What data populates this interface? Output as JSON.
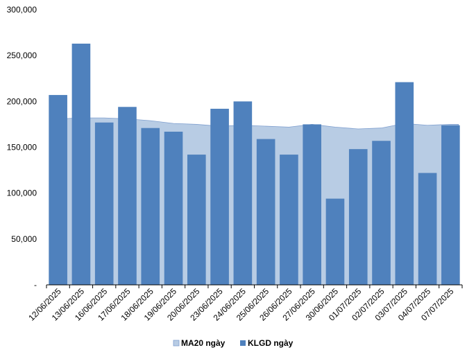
{
  "chart_data": {
    "type": "bar",
    "categories": [
      "12/06/2025",
      "13/06/2025",
      "16/06/2025",
      "17/06/2025",
      "18/06/2025",
      "19/06/2025",
      "20/06/2025",
      "23/06/2025",
      "24/06/2025",
      "25/06/2025",
      "26/06/2025",
      "27/06/2025",
      "30/06/2025",
      "01/07/2025",
      "02/07/2025",
      "03/07/2025",
      "04/07/2025",
      "07/07/2025"
    ],
    "series": [
      {
        "name": "MA20 ngày",
        "kind": "area",
        "color": "#b8cce4",
        "values": [
          181000,
          182000,
          182000,
          181000,
          179000,
          176000,
          175000,
          173000,
          174000,
          173000,
          172000,
          175000,
          172000,
          170000,
          171000,
          176000,
          174000,
          175000
        ]
      },
      {
        "name": "KLGD ngày",
        "kind": "bar",
        "color": "#4f81bd",
        "values": [
          207000,
          263000,
          177000,
          194000,
          171000,
          167000,
          142000,
          192000,
          200000,
          159000,
          142000,
          175000,
          94000,
          148000,
          157000,
          221000,
          122000,
          174000
        ]
      }
    ],
    "yticks": [
      "-",
      "50,000",
      "100,000",
      "150,000",
      "200,000",
      "250,000",
      "300,000"
    ],
    "ylim": [
      0,
      300000
    ],
    "legend_position": "bottom",
    "grid": false
  }
}
